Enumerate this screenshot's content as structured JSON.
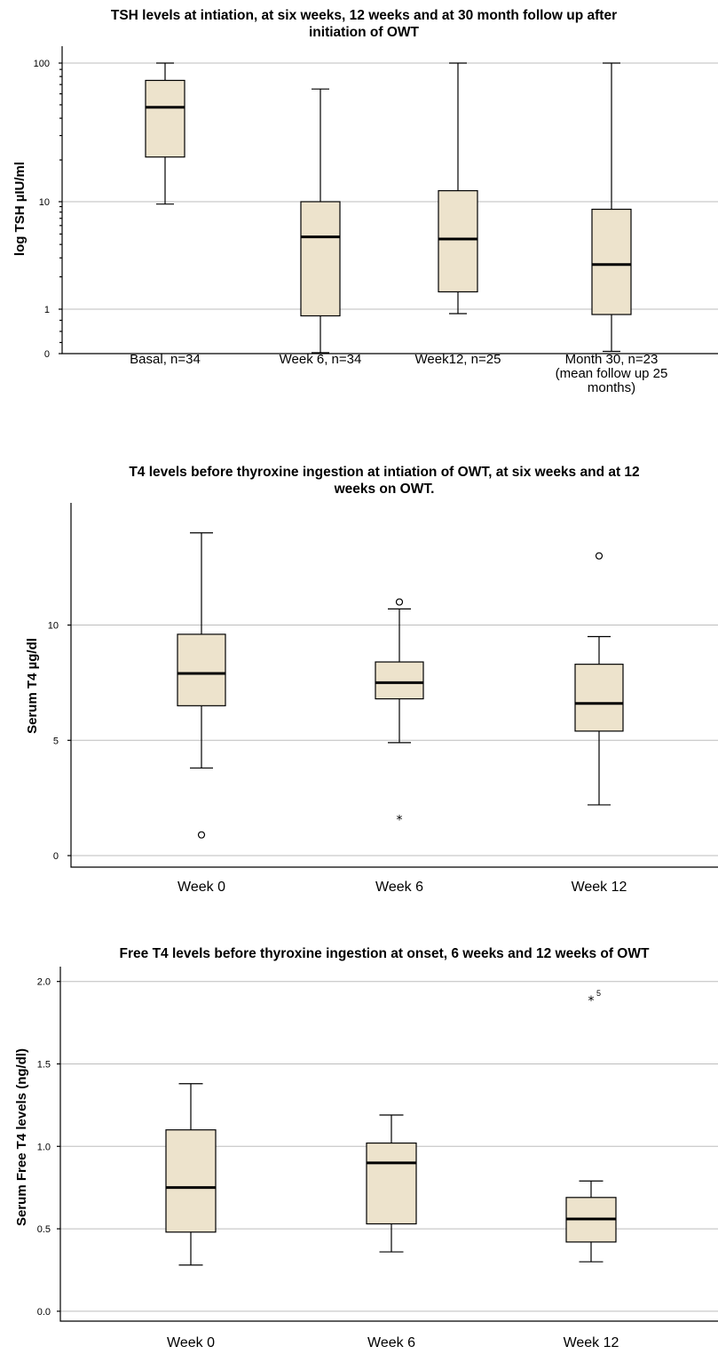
{
  "colors": {
    "box_fill": "#ede3cc",
    "grid": "#bdbdbd",
    "stroke": "#000000"
  },
  "chart_data": [
    {
      "type": "box",
      "title_lines": [
        "TSH levels at intiation, at six weeks, 12 weeks and at 30 month follow up after",
        "initiation of OWT"
      ],
      "ylabel": "log TSH µIU/ml",
      "xlabel": "",
      "yscale": "log",
      "yticks": [
        {
          "value": 100,
          "label": "100"
        },
        {
          "value": 10,
          "label": "10"
        },
        {
          "value": 1,
          "label": "1"
        },
        {
          "value": 0,
          "label": "0"
        }
      ],
      "categories": [
        {
          "lines": [
            "Basal, n=34"
          ]
        },
        {
          "lines": [
            "Week 6, n=34"
          ]
        },
        {
          "lines": [
            "Week12, n=25"
          ]
        },
        {
          "lines": [
            "Month 30, n=23",
            "(mean follow up 25",
            "months)"
          ]
        }
      ],
      "boxes": [
        {
          "min": 9.5,
          "q1": 21,
          "median": 48,
          "q3": 75,
          "max": 100
        },
        {
          "min": 0.02,
          "q1": 0.85,
          "median": 4.7,
          "q3": 10,
          "max": 65
        },
        {
          "min": 0.9,
          "q1": 1.45,
          "median": 4.5,
          "q3": 12,
          "max": 100
        },
        {
          "min": 0.05,
          "q1": 0.88,
          "median": 2.6,
          "q3": 8.5,
          "max": 100
        }
      ],
      "outliers": [],
      "grid": "horizontal"
    },
    {
      "type": "box",
      "title_lines": [
        "T4 levels before thyroxine ingestion at intiation of OWT, at six weeks and at 12",
        "weeks on OWT."
      ],
      "ylabel": "Serum T4 µg/dl",
      "xlabel": "",
      "yscale": "linear",
      "ylim": [
        -0.5,
        15.3
      ],
      "yticks": [
        {
          "value": 10,
          "label": "10"
        },
        {
          "value": 5,
          "label": "5"
        },
        {
          "value": 0,
          "label": "0"
        }
      ],
      "categories": [
        {
          "lines": [
            "Week 0"
          ]
        },
        {
          "lines": [
            "Week 6"
          ]
        },
        {
          "lines": [
            "Week 12"
          ]
        }
      ],
      "boxes": [
        {
          "min": 3.8,
          "q1": 6.5,
          "median": 7.9,
          "q3": 9.6,
          "max": 14.0
        },
        {
          "min": 4.9,
          "q1": 6.8,
          "median": 7.5,
          "q3": 8.4,
          "max": 10.7
        },
        {
          "min": 2.2,
          "q1": 5.4,
          "median": 6.6,
          "q3": 8.3,
          "max": 9.5
        }
      ],
      "outliers": [
        {
          "category": "Week 0",
          "value": 0.9,
          "marker": "circle",
          "label": ""
        },
        {
          "category": "Week 6",
          "value": 11.0,
          "marker": "circle",
          "label": ""
        },
        {
          "category": "Week 6",
          "value": 1.6,
          "marker": "star",
          "label": ""
        },
        {
          "category": "Week 12",
          "value": 13.0,
          "marker": "circle",
          "label": ""
        }
      ],
      "grid": "horizontal"
    },
    {
      "type": "box",
      "title_lines": [
        "Free T4 levels before thyroxine ingestion at onset, 6 weeks and 12 weeks of OWT"
      ],
      "ylabel": "Serum Free T4 levels (ng/dl)",
      "xlabel": "",
      "yscale": "linear",
      "ylim": [
        -0.06,
        2.09
      ],
      "yticks": [
        {
          "value": 2.0,
          "label": "2.0"
        },
        {
          "value": 1.5,
          "label": "1.5"
        },
        {
          "value": 1.0,
          "label": "1.0"
        },
        {
          "value": 0.5,
          "label": "0.5"
        },
        {
          "value": 0.0,
          "label": "0.0"
        }
      ],
      "categories": [
        {
          "lines": [
            "Week 0"
          ]
        },
        {
          "lines": [
            "Week 6"
          ]
        },
        {
          "lines": [
            "Week 12"
          ]
        }
      ],
      "boxes": [
        {
          "min": 0.28,
          "q1": 0.48,
          "median": 0.75,
          "q3": 1.1,
          "max": 1.38
        },
        {
          "min": 0.36,
          "q1": 0.53,
          "median": 0.9,
          "q3": 1.02,
          "max": 1.19
        },
        {
          "min": 0.3,
          "q1": 0.42,
          "median": 0.56,
          "q3": 0.69,
          "max": 0.79
        }
      ],
      "outliers": [
        {
          "category": "Week 12",
          "value": 1.89,
          "marker": "star",
          "label": "5"
        }
      ],
      "grid": "horizontal"
    }
  ]
}
